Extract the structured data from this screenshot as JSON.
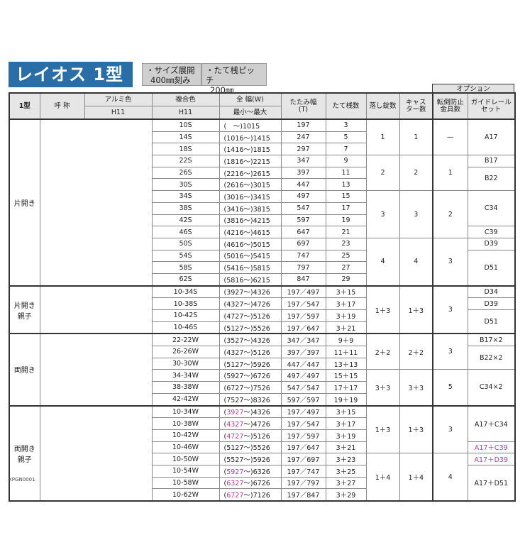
{
  "title": "レイオス 1型",
  "notes": [
    {
      "line1": "・サイズ展開",
      "line2": "400㎜刻み"
    },
    {
      "line1": "・たて桟ピッチ",
      "line2": "200㎜"
    }
  ],
  "option_header": "オプション",
  "headers": {
    "type": "1型",
    "name": "呼 称",
    "alumi": "アルミ色",
    "alumi_sub": "H11",
    "composite": "複合色",
    "composite_sub": "H11",
    "width": "全 幅(W)",
    "width_sub": "最小〜最大",
    "fold": "たたみ幅\n(T)",
    "bars": "たて桟数",
    "locks": "落し錠数",
    "casters": "キャス\nター数",
    "antitip": "転倒防止\n金具数",
    "guide": "ガイドレール\nセット"
  },
  "accent_color": "#c2379a",
  "groups": [
    {
      "label": "片開き",
      "rows": [
        {
          "name": "10S",
          "wmin": "　",
          "wmax": "1015",
          "t": "197",
          "bars": "3"
        },
        {
          "name": "14S",
          "wmin": "1016",
          "wmax": "1415",
          "t": "247",
          "bars": "5"
        },
        {
          "name": "18S",
          "wmin": "1416",
          "wmax": "1815",
          "t": "297",
          "bars": "7"
        },
        {
          "name": "22S",
          "wmin": "1816",
          "wmax": "2215",
          "t": "347",
          "bars": "9"
        },
        {
          "name": "26S",
          "wmin": "2216",
          "wmax": "2615",
          "t": "397",
          "bars": "11"
        },
        {
          "name": "30S",
          "wmin": "2616",
          "wmax": "3015",
          "t": "447",
          "bars": "13"
        },
        {
          "name": "34S",
          "wmin": "3016",
          "wmax": "3415",
          "t": "497",
          "bars": "15"
        },
        {
          "name": "38S",
          "wmin": "3416",
          "wmax": "3815",
          "t": "547",
          "bars": "17"
        },
        {
          "name": "42S",
          "wmin": "3816",
          "wmax": "4215",
          "t": "597",
          "bars": "19"
        },
        {
          "name": "46S",
          "wmin": "4216",
          "wmax": "4615",
          "t": "647",
          "bars": "21"
        },
        {
          "name": "50S",
          "wmin": "4616",
          "wmax": "5015",
          "t": "697",
          "bars": "23"
        },
        {
          "name": "54S",
          "wmin": "5016",
          "wmax": "5415",
          "t": "747",
          "bars": "25"
        },
        {
          "name": "58S",
          "wmin": "5416",
          "wmax": "5815",
          "t": "797",
          "bars": "27"
        },
        {
          "name": "62S",
          "wmin": "5816",
          "wmax": "6215",
          "t": "847",
          "bars": "29"
        }
      ],
      "locks": [
        {
          "v": "1",
          "span": 3
        },
        {
          "v": "2",
          "span": 3
        },
        {
          "v": "3",
          "span": 4
        },
        {
          "v": "4",
          "span": 4
        }
      ],
      "casters": [
        {
          "v": "1",
          "span": 3
        },
        {
          "v": "2",
          "span": 3
        },
        {
          "v": "3",
          "span": 4
        },
        {
          "v": "4",
          "span": 4
        }
      ],
      "antitip": [
        {
          "v": "—",
          "span": 3
        },
        {
          "v": "1",
          "span": 3
        },
        {
          "v": "2",
          "span": 4
        },
        {
          "v": "3",
          "span": 4
        }
      ],
      "guide": [
        {
          "v": "A17",
          "span": 3
        },
        {
          "v": "B17",
          "span": 1
        },
        {
          "v": "B22",
          "span": 2
        },
        {
          "v": "C34",
          "span": 3
        },
        {
          "v": "C39",
          "span": 1
        },
        {
          "v": "D39",
          "span": 1
        },
        {
          "v": "D51",
          "span": 3
        }
      ]
    },
    {
      "label": "片開き\n親子",
      "rows": [
        {
          "name": "10-34S",
          "wmin": "3927",
          "wmax": "4326",
          "t": "197／497",
          "bars": "3＋15"
        },
        {
          "name": "10-38S",
          "wmin": "4327",
          "wmax": "4726",
          "t": "197／547",
          "bars": "3＋17"
        },
        {
          "name": "10-42S",
          "wmin": "4727",
          "wmax": "5126",
          "t": "197／597",
          "bars": "3＋19"
        },
        {
          "name": "10-46S",
          "wmin": "5127",
          "wmax": "5526",
          "t": "197／647",
          "bars": "3＋21"
        }
      ],
      "locks": [
        {
          "v": "1＋3",
          "span": 4
        }
      ],
      "casters": [
        {
          "v": "1＋3",
          "span": 4
        }
      ],
      "antitip": [
        {
          "v": "3",
          "span": 4
        }
      ],
      "guide": [
        {
          "v": "D34",
          "span": 1
        },
        {
          "v": "D39",
          "span": 1
        },
        {
          "v": "D51",
          "span": 2
        }
      ]
    },
    {
      "label": "両開き",
      "rows": [
        {
          "name": "22-22W",
          "wmin": "3527",
          "wmax": "4326",
          "t": "347／347",
          "bars": "9＋9"
        },
        {
          "name": "26-26W",
          "wmin": "4327",
          "wmax": "5126",
          "t": "397／397",
          "bars": "11＋11"
        },
        {
          "name": "30-30W",
          "wmin": "5127",
          "wmax": "5926",
          "t": "447／447",
          "bars": "13＋13"
        },
        {
          "name": "34-34W",
          "wmin": "5927",
          "wmax": "6726",
          "t": "497／497",
          "bars": "15＋15"
        },
        {
          "name": "38-38W",
          "wmin": "6727",
          "wmax": "7526",
          "t": "547／547",
          "bars": "17＋17"
        },
        {
          "name": "42-42W",
          "wmin": "7527",
          "wmax": "8326",
          "t": "597／597",
          "bars": "19＋19"
        }
      ],
      "locks": [
        {
          "v": "2＋2",
          "span": 3
        },
        {
          "v": "3＋3",
          "span": 3
        }
      ],
      "casters": [
        {
          "v": "2＋2",
          "span": 3
        },
        {
          "v": "3＋3",
          "span": 3
        }
      ],
      "antitip": [
        {
          "v": "3",
          "span": 3
        },
        {
          "v": "5",
          "span": 3
        }
      ],
      "guide": [
        {
          "v": "B17×2",
          "span": 1
        },
        {
          "v": "B22×2",
          "span": 2
        },
        {
          "v": "C34×2",
          "span": 3
        }
      ]
    },
    {
      "label": "両開き\n親子",
      "rows": [
        {
          "name": "10-34W",
          "wmin": "3927",
          "wmax": "4326",
          "t": "197／497",
          "bars": "3＋15",
          "hl": true
        },
        {
          "name": "10-38W",
          "wmin": "4327",
          "wmax": "4726",
          "t": "197／547",
          "bars": "3＋17",
          "hl": true
        },
        {
          "name": "10-42W",
          "wmin": "4727",
          "wmax": "5126",
          "t": "197／597",
          "bars": "3＋19",
          "hl": true
        },
        {
          "name": "10-46W",
          "wmin": "5127",
          "wmax": "5526",
          "t": "197／647",
          "bars": "3＋21"
        },
        {
          "name": "10-50W",
          "wmin": "5527",
          "wmax": "5926",
          "t": "197／697",
          "bars": "3＋23"
        },
        {
          "name": "10-54W",
          "wmin": "5927",
          "wmax": "6326",
          "t": "197／747",
          "bars": "3＋25",
          "hl": true
        },
        {
          "name": "10-58W",
          "wmin": "6327",
          "wmax": "6726",
          "t": "197／797",
          "bars": "3＋27",
          "hl": true
        },
        {
          "name": "10-62W",
          "wmin": "6727",
          "wmax": "7126",
          "t": "197／847",
          "bars": "3＋29",
          "hl": true
        }
      ],
      "locks": [
        {
          "v": "1＋3",
          "span": 4
        },
        {
          "v": "1＋4",
          "span": 4
        }
      ],
      "casters": [
        {
          "v": "1＋3",
          "span": 4
        },
        {
          "v": "1＋4",
          "span": 4
        }
      ],
      "antitip": [
        {
          "v": "3",
          "span": 4
        },
        {
          "v": "4",
          "span": 4
        }
      ],
      "guide": [
        {
          "v": "A17＋C34",
          "span": 3
        },
        {
          "v": "A17＋C39",
          "span": 1,
          "hl": true
        },
        {
          "v": "A17＋D39",
          "span": 1,
          "hl": true
        },
        {
          "v": "A17＋D51",
          "span": 3
        }
      ]
    }
  ],
  "code": "XPGN0001"
}
